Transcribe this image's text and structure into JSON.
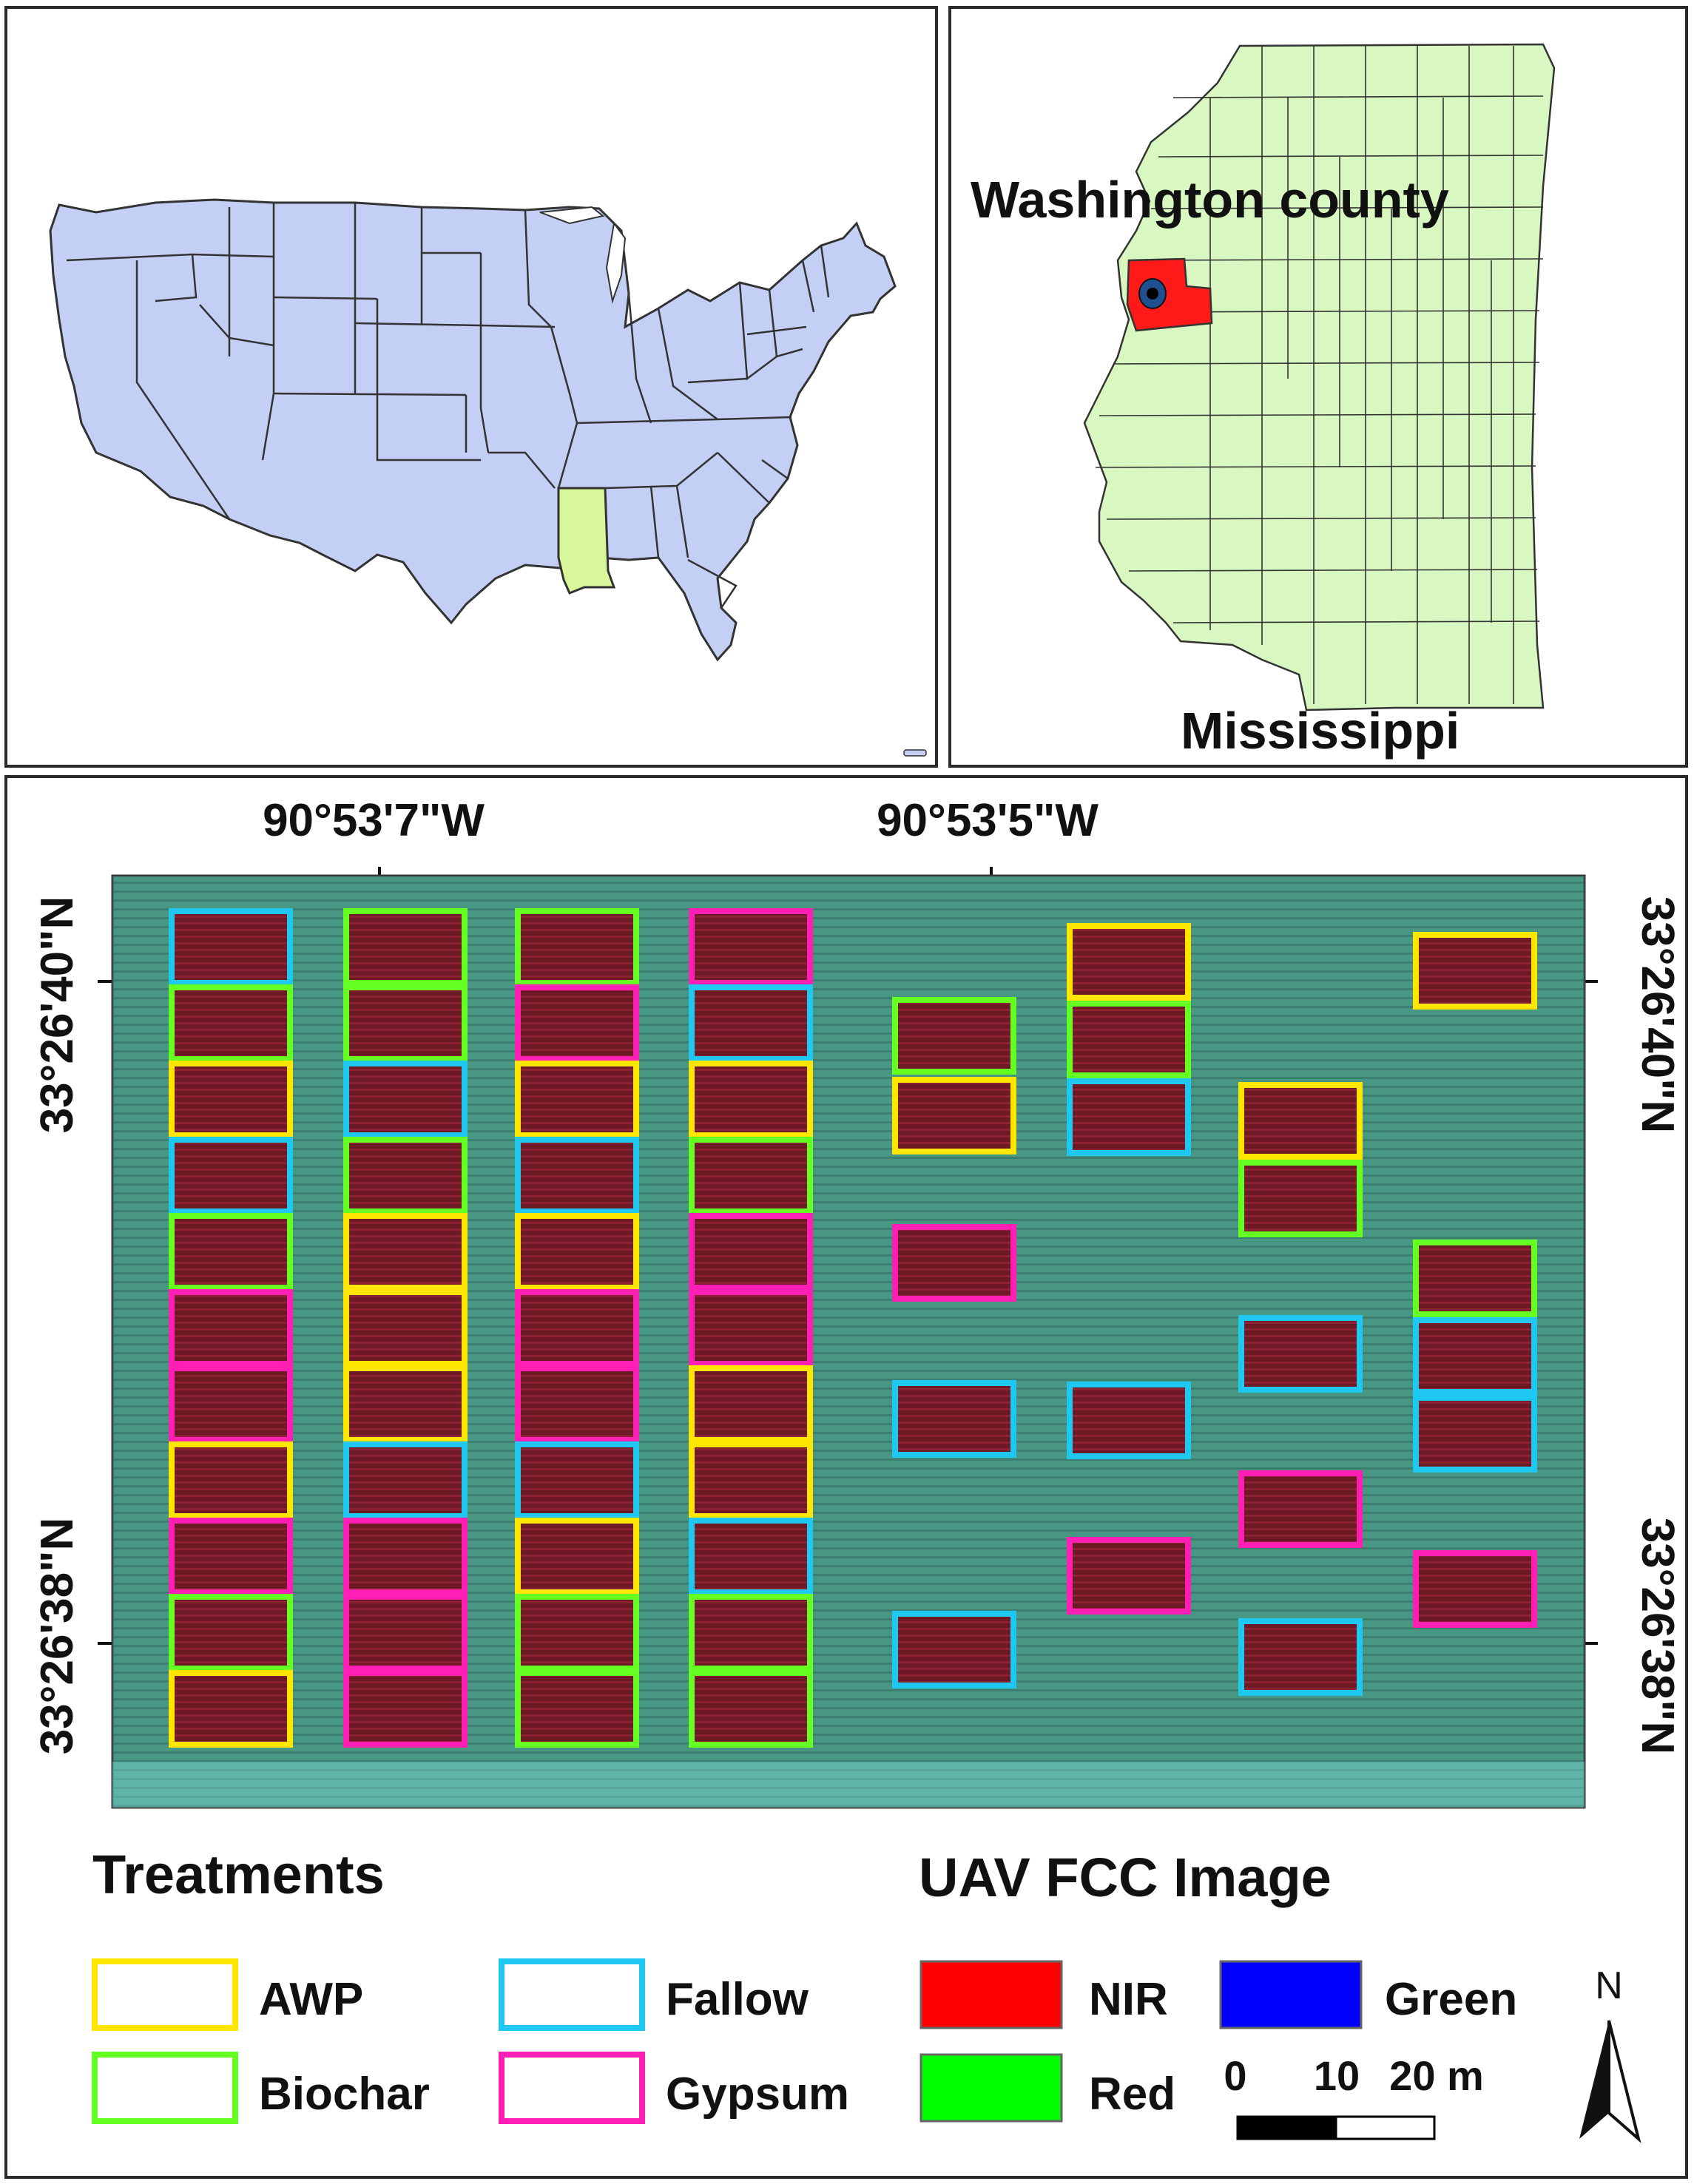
{
  "inset_state": {
    "label": "Washington county",
    "state_name": "Mississippi"
  },
  "study_area": {
    "coords": {
      "lon_left": "90°53'7\"W",
      "lon_right": "90°53'5\"W",
      "lat_top": "33°26'40\"N",
      "lat_bottom": "33°26'38\"N"
    }
  },
  "legend": {
    "treatments_title": "Treatments",
    "treatments": [
      {
        "label": "AWP",
        "color": "#ffe600"
      },
      {
        "label": "Biochar",
        "color": "#66ff22"
      },
      {
        "label": "Fallow",
        "color": "#1ec8f0"
      },
      {
        "label": "Gypsum",
        "color": "#ff1fb4"
      }
    ],
    "image_title": "UAV FCC Image",
    "bands": [
      {
        "label": "NIR",
        "color": "#ff0000"
      },
      {
        "label": "Red",
        "color": "#00ff00"
      },
      {
        "label": "Green",
        "color": "#0000ff"
      }
    ]
  },
  "north_arrow": {
    "label": "N"
  },
  "scale_bar": {
    "labels": [
      "0",
      "10",
      "20 m"
    ]
  },
  "colors": {
    "usa_fill": "#c4cff5",
    "mississippi_fill": "#d8f79a",
    "ms_county_fill": "#d9f7c0",
    "washington_fill": "#ff1a1a",
    "field_bg": "#3f8a74",
    "plot_fill": "#6e1a26"
  },
  "plots": [
    {
      "col": 1,
      "treatments": [
        "Fallow",
        "Biochar",
        "AWP",
        "Fallow",
        "Biochar",
        "Gypsum",
        "Gypsum",
        "AWP",
        "Gypsum",
        "Biochar",
        "AWP"
      ]
    },
    {
      "col": 2,
      "treatments": [
        "Biochar",
        "Biochar",
        "Fallow",
        "Biochar",
        "AWP",
        "AWP",
        "AWP",
        "Fallow",
        "Gypsum",
        "Gypsum",
        "Gypsum"
      ]
    },
    {
      "col": 3,
      "treatments": [
        "Biochar",
        "Gypsum",
        "AWP",
        "Fallow",
        "AWP",
        "Gypsum",
        "Gypsum",
        "Fallow",
        "AWP",
        "Biochar",
        "Biochar"
      ]
    },
    {
      "col": 4,
      "treatments": [
        "Gypsum",
        "Fallow",
        "AWP",
        "Biochar",
        "Gypsum",
        "Gypsum",
        "AWP",
        "AWP",
        "Fallow",
        "Biochar",
        "Biochar"
      ]
    }
  ]
}
